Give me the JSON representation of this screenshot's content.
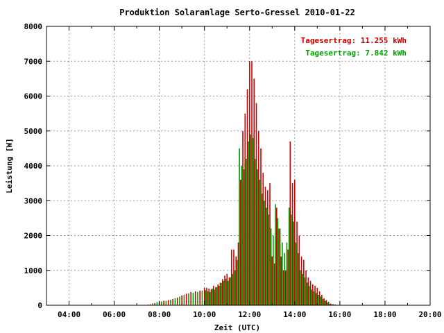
{
  "chart_data": {
    "type": "bar",
    "title": "Produktion Solaranlage Serto-Gressel 2010-01-22",
    "xlabel": "Zeit (UTC)",
    "ylabel": "Leistung [W]",
    "xlim": [
      3.0,
      20.0
    ],
    "ylim": [
      0,
      8000
    ],
    "x_ticks": [
      4,
      6,
      8,
      10,
      12,
      14,
      16,
      18,
      20
    ],
    "x_tick_labels": [
      "04:00",
      "06:00",
      "08:00",
      "10:00",
      "12:00",
      "14:00",
      "16:00",
      "18:00",
      "20:00"
    ],
    "y_ticks": [
      0,
      1000,
      2000,
      3000,
      4000,
      5000,
      6000,
      7000,
      8000
    ],
    "y_tick_labels": [
      "0",
      "1000",
      "2000",
      "3000",
      "4000",
      "5000",
      "6000",
      "7000",
      "8000"
    ],
    "grid": true,
    "legend_position": "top-right",
    "colors": {
      "series1": "#cc0000",
      "series2": "#00a000"
    },
    "series": [
      {
        "legend": "Tagesertrag: 11.255 kWh",
        "color": "#cc0000",
        "x": [
          7.6,
          7.8,
          8.0,
          8.2,
          8.4,
          8.6,
          8.8,
          9.0,
          9.2,
          9.4,
          9.6,
          9.8,
          10.0,
          10.1,
          10.2,
          10.3,
          10.4,
          10.5,
          10.6,
          10.7,
          10.8,
          10.9,
          11.0,
          11.1,
          11.2,
          11.3,
          11.4,
          11.5,
          11.6,
          11.7,
          11.8,
          11.9,
          12.0,
          12.1,
          12.2,
          12.3,
          12.4,
          12.5,
          12.6,
          12.7,
          12.8,
          12.9,
          13.0,
          13.1,
          13.2,
          13.3,
          13.4,
          13.5,
          13.6,
          13.7,
          13.8,
          13.9,
          14.0,
          14.1,
          14.2,
          14.3,
          14.4,
          14.5,
          14.6,
          14.7,
          14.8,
          14.9,
          15.0,
          15.1,
          15.2,
          15.3,
          15.4,
          15.5,
          15.6,
          15.7,
          15.8,
          15.9,
          16.0,
          16.1
        ],
        "y": [
          30,
          60,
          100,
          130,
          150,
          180,
          220,
          280,
          330,
          380,
          400,
          420,
          500,
          500,
          480,
          460,
          560,
          520,
          600,
          650,
          750,
          850,
          900,
          800,
          1600,
          1600,
          1400,
          1800,
          3600,
          5000,
          5500,
          6200,
          7000,
          7000,
          6500,
          5800,
          5000,
          4500,
          3800,
          3400,
          3300,
          3500,
          1400,
          1200,
          2800,
          2200,
          1400,
          1000,
          1000,
          1600,
          4700,
          3500,
          3600,
          2400,
          2000,
          1400,
          1300,
          1000,
          800,
          700,
          600,
          560,
          500,
          400,
          300,
          200,
          150,
          100,
          50,
          30,
          20,
          10,
          5,
          2
        ]
      },
      {
        "legend": "Tagesertrag: 7.842 kWh",
        "color": "#00a000",
        "x": [
          7.5,
          7.7,
          7.9,
          8.1,
          8.3,
          8.5,
          8.7,
          8.9,
          9.1,
          9.3,
          9.5,
          9.7,
          9.9,
          10.05,
          10.15,
          10.25,
          10.35,
          10.45,
          10.55,
          10.65,
          10.75,
          10.85,
          10.95,
          11.05,
          11.15,
          11.25,
          11.35,
          11.45,
          11.55,
          11.65,
          11.75,
          11.85,
          11.95,
          12.05,
          12.15,
          12.25,
          12.35,
          12.45,
          12.55,
          12.65,
          12.75,
          12.85,
          12.95,
          13.05,
          13.15,
          13.25,
          13.35,
          13.45,
          13.55,
          13.65,
          13.75,
          13.85,
          13.95,
          14.05,
          14.15,
          14.25,
          14.35,
          14.45,
          14.55,
          14.65,
          14.75,
          14.85,
          14.95,
          15.05,
          15.15,
          15.25,
          15.35,
          15.45,
          15.55,
          15.65,
          15.75,
          15.85,
          15.95,
          16.05
        ],
        "y": [
          20,
          50,
          90,
          110,
          130,
          160,
          200,
          250,
          300,
          340,
          360,
          380,
          420,
          430,
          400,
          380,
          480,
          450,
          520,
          560,
          640,
          700,
          760,
          700,
          800,
          900,
          1000,
          1300,
          4500,
          4000,
          3900,
          4200,
          4700,
          4900,
          4800,
          4200,
          3900,
          3600,
          3200,
          3000,
          2800,
          2600,
          2200,
          2000,
          2900,
          2500,
          2200,
          1800,
          1500,
          1800,
          2800,
          2600,
          2400,
          1800,
          1500,
          1000,
          900,
          800,
          650,
          550,
          450,
          400,
          350,
          300,
          250,
          180,
          120,
          80,
          40,
          25,
          15,
          8,
          4,
          2
        ]
      }
    ]
  }
}
